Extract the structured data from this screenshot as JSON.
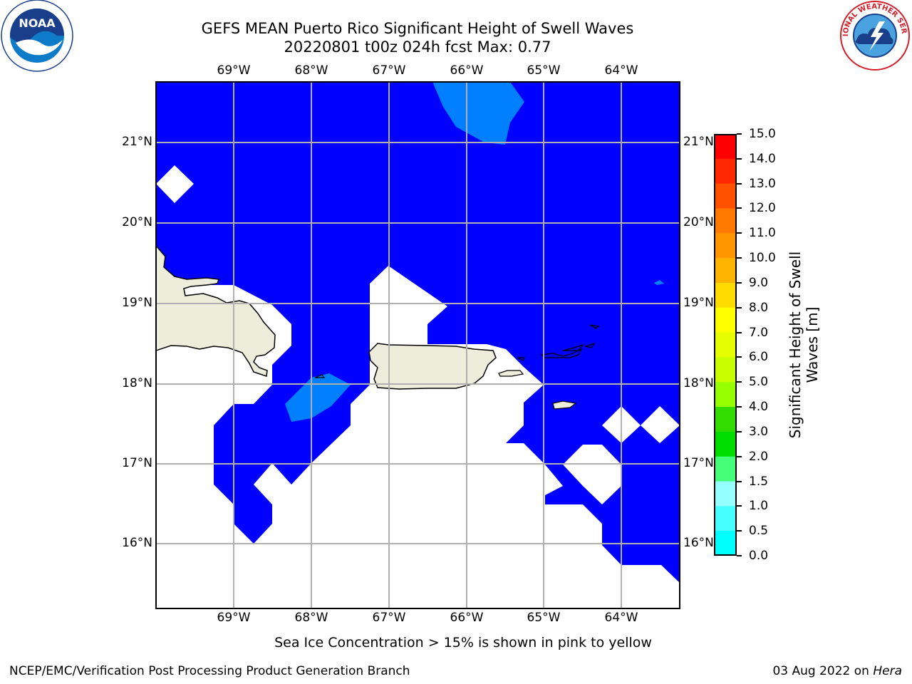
{
  "title_line1": "GEFS MEAN Puerto Rico Significant Height of Swell Waves",
  "title_line2": "20220801 t00z 024h fcst   Max: 0.77",
  "logos": {
    "left": "NOAA",
    "right": "NATIONAL WEATHER SERVICE"
  },
  "lon_ticks": [
    "69°W",
    "68°W",
    "67°W",
    "66°W",
    "65°W",
    "64°W"
  ],
  "lat_ticks": [
    "21°N",
    "20°N",
    "19°N",
    "18°N",
    "17°N",
    "16°N"
  ],
  "colorbar": {
    "label_line1": "Significant Height of Swell",
    "label_line2": "Waves [m]",
    "ticks": [
      "15.0",
      "14.0",
      "13.0",
      "12.0",
      "11.0",
      "10.0",
      "9.0",
      "8.0",
      "7.0",
      "6.0",
      "5.0",
      "4.0",
      "3.0",
      "2.0",
      "1.5",
      "1.0",
      "0.5",
      "0.0"
    ],
    "colors": [
      "#ff0000",
      "#ff2800",
      "#ff5000",
      "#ff7800",
      "#ff9600",
      "#ffb400",
      "#ffdc00",
      "#ffff00",
      "#e6ff00",
      "#c8ff00",
      "#96ff00",
      "#32dc00",
      "#00dc00",
      "#46ff78",
      "#96ffff",
      "#46ffff",
      "#00ffff",
      "#0080ff",
      "#0000ff"
    ]
  },
  "note": "Sea Ice Concentration > 15% is shown in pink to yellow",
  "footer_left": "NCEP/EMC/Verification Post Processing Product Generation Branch",
  "footer_right_prefix": "03 Aug 2022 on ",
  "footer_right_host": "Hera"
}
